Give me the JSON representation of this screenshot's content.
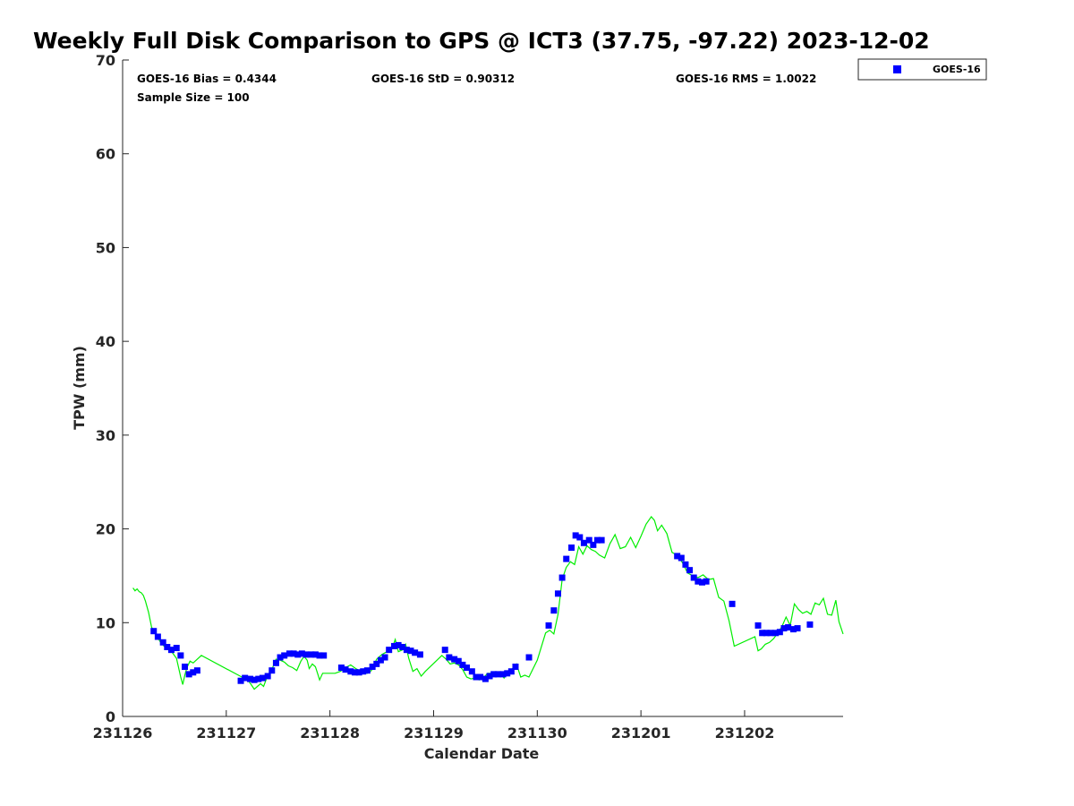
{
  "chart_data": {
    "type": "scatter",
    "title": "Weekly Full Disk Comparison to GPS @ ICT3 (37.75, -97.22) 2023-12-02",
    "xlabel": "Calendar Date",
    "ylabel": "TPW (mm)",
    "xlim": [
      0,
      6.95
    ],
    "ylim": [
      0,
      70
    ],
    "x_ticks": [
      "231126",
      "231127",
      "231128",
      "231129",
      "231130",
      "231201",
      "231202"
    ],
    "y_ticks": [
      0,
      10,
      20,
      30,
      40,
      50,
      60,
      70
    ],
    "stats": {
      "bias": "GOES-16 Bias = 0.4344",
      "std": "GOES-16 StD = 0.90312",
      "rms": "GOES-16 RMS = 1.0022",
      "sample": "Sample Size = 100"
    },
    "legend": {
      "position": "top-right-outside",
      "entries": [
        "GOES-16"
      ]
    },
    "colors": {
      "goes": "#0000ff",
      "gps": "#00ee00"
    },
    "series": [
      {
        "name": "GOES-16",
        "marker": "square",
        "x": [
          0.3,
          0.34,
          0.39,
          0.43,
          0.47,
          0.52,
          0.56,
          0.6,
          0.64,
          0.68,
          0.72,
          1.14,
          1.18,
          1.23,
          1.27,
          1.31,
          1.35,
          1.4,
          1.44,
          1.48,
          1.52,
          1.56,
          1.61,
          1.65,
          1.69,
          1.73,
          1.77,
          1.82,
          1.86,
          1.9,
          1.94,
          2.11,
          2.15,
          2.2,
          2.24,
          2.28,
          2.32,
          2.36,
          2.41,
          2.45,
          2.49,
          2.53,
          2.57,
          2.62,
          2.66,
          2.7,
          2.74,
          2.78,
          2.82,
          2.87,
          3.11,
          3.15,
          3.2,
          3.24,
          3.28,
          3.32,
          3.37,
          3.41,
          3.45,
          3.5,
          3.54,
          3.58,
          3.62,
          3.67,
          3.71,
          3.75,
          3.79,
          3.92,
          4.11,
          4.16,
          4.2,
          4.24,
          4.28,
          4.33,
          4.37,
          4.41,
          4.45,
          4.5,
          4.54,
          4.58,
          4.62,
          5.35,
          5.39,
          5.43,
          5.47,
          5.51,
          5.55,
          5.59,
          5.63,
          5.88,
          6.13,
          6.17,
          6.21,
          6.25,
          6.3,
          6.34,
          6.38,
          6.42,
          6.47,
          6.51,
          6.63
        ],
        "y": [
          9.1,
          8.5,
          7.9,
          7.4,
          7.1,
          7.3,
          6.5,
          5.3,
          4.5,
          4.7,
          4.9,
          3.8,
          4.1,
          4.0,
          3.9,
          4.0,
          4.1,
          4.3,
          4.9,
          5.7,
          6.3,
          6.5,
          6.7,
          6.7,
          6.6,
          6.7,
          6.6,
          6.6,
          6.6,
          6.5,
          6.5,
          5.2,
          5.0,
          4.8,
          4.7,
          4.7,
          4.8,
          4.9,
          5.3,
          5.6,
          6.0,
          6.3,
          7.1,
          7.5,
          7.6,
          7.4,
          7.1,
          7.0,
          6.8,
          6.6,
          7.1,
          6.3,
          6.1,
          5.9,
          5.5,
          5.2,
          4.8,
          4.2,
          4.2,
          4.0,
          4.3,
          4.5,
          4.5,
          4.5,
          4.6,
          4.8,
          5.3,
          6.3,
          9.7,
          11.3,
          13.1,
          14.8,
          16.8,
          18.0,
          19.3,
          19.1,
          18.5,
          18.8,
          18.3,
          18.8,
          18.8,
          17.1,
          16.9,
          16.2,
          15.6,
          14.8,
          14.4,
          14.3,
          14.4,
          12.0,
          9.7,
          8.9,
          8.9,
          8.9,
          8.9,
          9.0,
          9.4,
          9.5,
          9.3,
          9.4,
          9.8
        ]
      },
      {
        "name": "GPS",
        "x": [
          0.1,
          0.12,
          0.14,
          0.16,
          0.18,
          0.2,
          0.22,
          0.25,
          0.28,
          0.32,
          0.36,
          0.4,
          0.44,
          0.48,
          0.52,
          0.56,
          0.58,
          0.6,
          0.62,
          0.65,
          0.68,
          0.72,
          0.76,
          1.1,
          1.15,
          1.2,
          1.24,
          1.27,
          1.3,
          1.33,
          1.36,
          1.4,
          1.44,
          1.48,
          1.52,
          1.56,
          1.6,
          1.64,
          1.68,
          1.72,
          1.75,
          1.78,
          1.8,
          1.83,
          1.86,
          1.88,
          1.9,
          1.93,
          2.05,
          2.1,
          2.15,
          2.2,
          2.25,
          2.3,
          2.36,
          2.4,
          2.45,
          2.5,
          2.55,
          2.6,
          2.63,
          2.66,
          2.7,
          2.73,
          2.76,
          2.8,
          2.84,
          2.88,
          2.92,
          3.08,
          3.12,
          3.16,
          3.2,
          3.24,
          3.28,
          3.32,
          3.36,
          3.4,
          3.44,
          3.48,
          3.52,
          3.56,
          3.6,
          3.64,
          3.68,
          3.72,
          3.76,
          3.8,
          3.84,
          3.88,
          3.92,
          4.0,
          4.08,
          4.12,
          4.16,
          4.2,
          4.24,
          4.28,
          4.32,
          4.36,
          4.4,
          4.44,
          4.48,
          4.52,
          4.56,
          4.6,
          4.65,
          4.7,
          4.75,
          4.8,
          4.85,
          4.9,
          4.95,
          5.0,
          5.05,
          5.1,
          5.13,
          5.16,
          5.2,
          5.25,
          5.3,
          5.35,
          5.4,
          5.45,
          5.5,
          5.55,
          5.6,
          5.65,
          5.7,
          5.75,
          5.8,
          5.85,
          5.9,
          6.1,
          6.13,
          6.16,
          6.2,
          6.24,
          6.28,
          6.32,
          6.36,
          6.4,
          6.44,
          6.48,
          6.52,
          6.56,
          6.6,
          6.64,
          6.68,
          6.72,
          6.76,
          6.8,
          6.84,
          6.88,
          6.91,
          6.95
        ],
        "y": [
          13.7,
          13.4,
          13.6,
          13.3,
          13.2,
          12.9,
          12.3,
          11.1,
          9.5,
          8.8,
          8.0,
          7.5,
          7.2,
          6.8,
          6.2,
          4.2,
          3.4,
          4.4,
          5.2,
          5.9,
          5.7,
          6.1,
          6.5,
          4.5,
          4.2,
          4.0,
          3.4,
          2.9,
          3.2,
          3.5,
          3.2,
          4.4,
          5.0,
          6.1,
          6.0,
          5.8,
          5.4,
          5.2,
          4.9,
          5.9,
          6.4,
          6.0,
          5.1,
          5.6,
          5.3,
          4.6,
          3.9,
          4.6,
          4.6,
          4.8,
          5.2,
          5.5,
          5.1,
          4.8,
          4.6,
          4.9,
          6.1,
          6.6,
          6.9,
          7.3,
          8.2,
          6.9,
          7.1,
          7.7,
          6.2,
          4.8,
          5.1,
          4.3,
          4.8,
          6.5,
          6.1,
          5.6,
          5.7,
          5.5,
          5.0,
          4.2,
          4.0,
          4.1,
          3.9,
          4.1,
          4.6,
          4.6,
          4.4,
          4.6,
          4.1,
          4.8,
          5.1,
          5.6,
          4.2,
          4.4,
          4.2,
          6.0,
          8.9,
          9.2,
          8.8,
          10.9,
          14.6,
          15.9,
          16.5,
          16.2,
          18.1,
          17.3,
          18.2,
          17.8,
          17.6,
          17.2,
          16.9,
          18.4,
          19.4,
          17.9,
          18.1,
          19.1,
          18.0,
          19.2,
          20.5,
          21.3,
          20.9,
          19.8,
          20.4,
          19.5,
          17.5,
          17.2,
          16.4,
          15.3,
          15.0,
          14.8,
          15.1,
          14.6,
          14.7,
          12.7,
          12.3,
          10.2,
          7.5,
          8.5,
          7.0,
          7.2,
          7.7,
          7.9,
          8.3,
          8.9,
          9.6,
          10.6,
          9.7,
          12.0,
          11.4,
          11.0,
          11.2,
          10.9,
          12.1,
          11.9,
          12.6,
          10.9,
          10.8,
          12.4,
          10.1,
          8.8
        ]
      }
    ]
  }
}
